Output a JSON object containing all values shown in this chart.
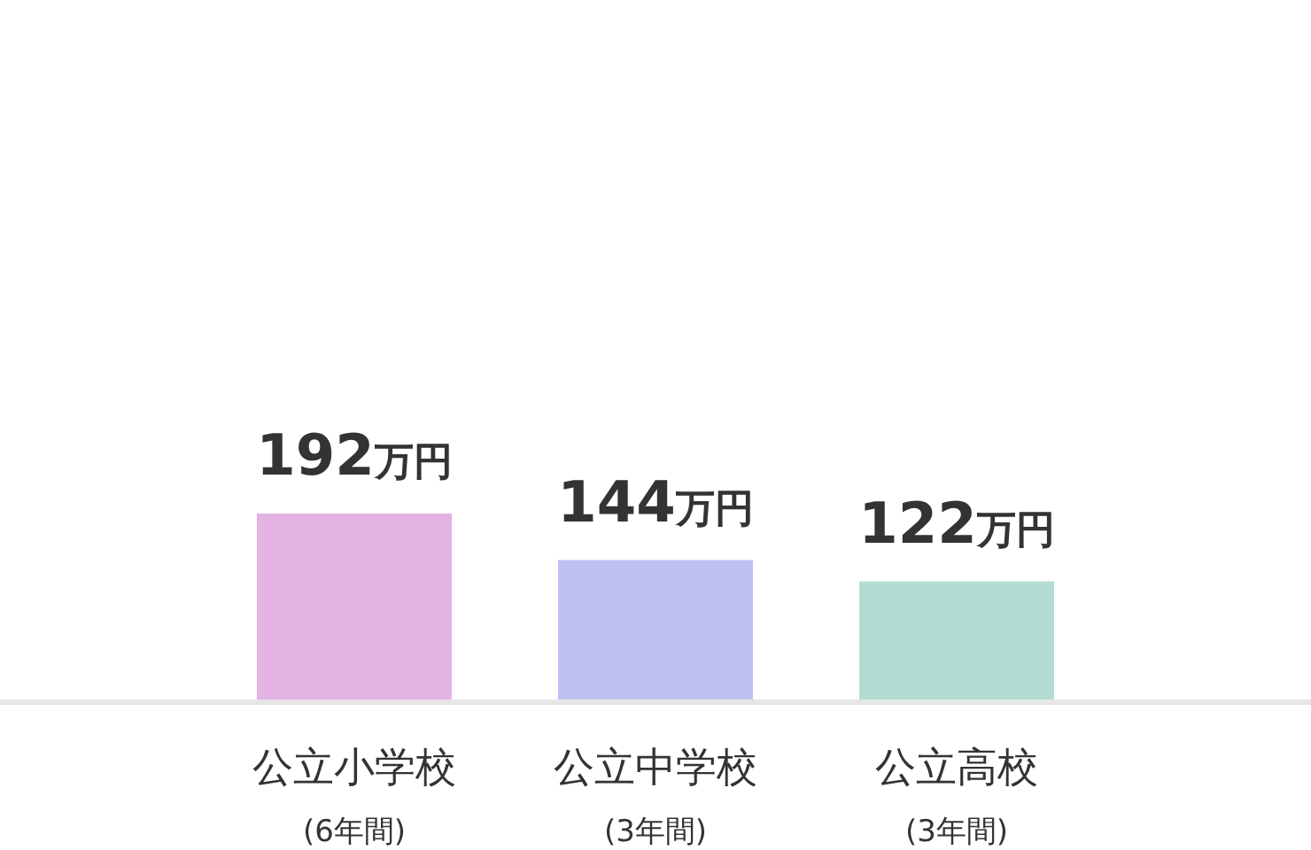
{
  "chart_data": {
    "type": "bar",
    "categories": [
      "公立小学校\n(6年間)",
      "公立中学校\n(3年間)",
      "公立高校\n(3年間)"
    ],
    "values": [
      192,
      144,
      122
    ],
    "colors": [
      "#e3b3e3",
      "#bfbff2",
      "#b3ddd2"
    ],
    "value_labels": [
      "192万円",
      "144万円",
      "122万円"
    ]
  }
}
